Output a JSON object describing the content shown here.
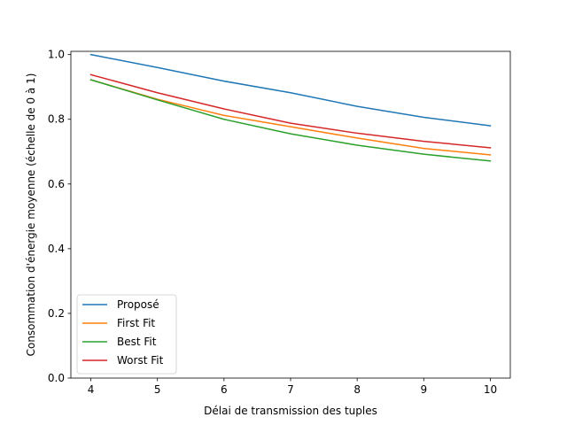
{
  "chart_data": {
    "type": "line",
    "title": "",
    "xlabel": "Délai de transmission des tuples",
    "ylabel": "Consommation d'énergie moyenne (échelle de 0 à 1)",
    "x": [
      4,
      5,
      6,
      7,
      8,
      9,
      10
    ],
    "xticks": [
      4,
      5,
      6,
      7,
      8,
      9,
      10
    ],
    "yticks": [
      0.0,
      0.2,
      0.4,
      0.6,
      0.8,
      1.0
    ],
    "xlim": [
      3.7,
      10.3
    ],
    "ylim": [
      0.0,
      1.01
    ],
    "grid": false,
    "legend_position": "lower-left",
    "series": [
      {
        "name": "Proposé",
        "color": "#1f77b4",
        "values": [
          1.0,
          0.96,
          0.918,
          0.882,
          0.84,
          0.806,
          0.78
        ]
      },
      {
        "name": "First Fit",
        "color": "#ff7f0e",
        "values": [
          0.922,
          0.862,
          0.812,
          0.777,
          0.742,
          0.71,
          0.69
        ]
      },
      {
        "name": "Best Fit",
        "color": "#2ca02c",
        "values": [
          0.922,
          0.86,
          0.8,
          0.755,
          0.72,
          0.692,
          0.671
        ]
      },
      {
        "name": "Worst Fit",
        "color": "#d62728",
        "values": [
          0.938,
          0.882,
          0.832,
          0.788,
          0.757,
          0.732,
          0.712
        ]
      }
    ]
  }
}
